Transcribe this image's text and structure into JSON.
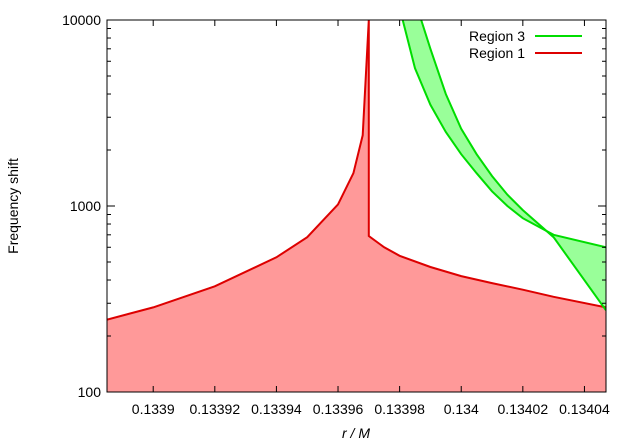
{
  "chart_data": {
    "type": "area",
    "xlabel": "r / M",
    "ylabel": "Frequency shift",
    "xlim": [
      0.133885,
      0.134047
    ],
    "ylim": [
      100,
      10000
    ],
    "yscale": "log",
    "grid": false,
    "legend_position": "top-right",
    "x_ticks": [
      0.1339,
      0.13392,
      0.13394,
      0.13396,
      0.13398,
      0.134,
      0.13402,
      0.13404
    ],
    "x_tick_labels": [
      "0.1339",
      "0.13392",
      "0.13394",
      "0.13396",
      "0.13398",
      "0.134",
      "0.13402",
      "0.13404"
    ],
    "y_ticks": [
      100,
      1000,
      10000
    ],
    "y_tick_labels": [
      "100",
      "1000",
      "10000"
    ],
    "series": [
      {
        "name": "Region 3",
        "color": "#00dd00",
        "fill": "#99ff99",
        "upper": {
          "x": [
            0.133981,
            0.133985,
            0.13399,
            0.133995,
            0.134,
            0.134005,
            0.13401,
            0.134015,
            0.13402,
            0.13403,
            0.134047
          ],
          "y": [
            10000,
            5500,
            3500,
            2500,
            1900,
            1500,
            1200,
            1000,
            860,
            700,
            600
          ]
        },
        "lower": {
          "x": [
            0.133987,
            0.13399,
            0.133995,
            0.134,
            0.134005,
            0.13401,
            0.134015,
            0.13402,
            0.13403,
            0.134047
          ],
          "y": [
            10000,
            7000,
            4000,
            2600,
            1900,
            1450,
            1150,
            950,
            680,
            275
          ]
        }
      },
      {
        "name": "Region 1",
        "color": "#dd0000",
        "fill": "#ff9999",
        "upper": {
          "x": [
            0.133885,
            0.1339,
            0.13392,
            0.13394,
            0.13395,
            0.13396,
            0.133965,
            0.133968,
            0.13397,
            0.13397,
            0.133975,
            0.13398,
            0.13399,
            0.134,
            0.13401,
            0.13402,
            0.13403,
            0.134047
          ],
          "y": [
            245,
            285,
            370,
            530,
            680,
            1020,
            1500,
            2400,
            10000,
            690,
            600,
            540,
            470,
            420,
            385,
            355,
            325,
            285
          ]
        },
        "lower_bound": 100
      }
    ]
  }
}
